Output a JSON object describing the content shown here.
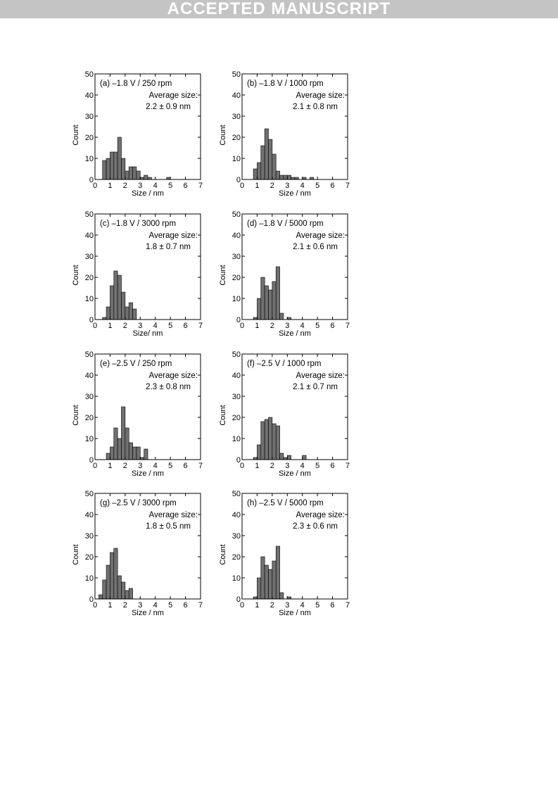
{
  "banner": {
    "text": "ACCEPTED MANUSCRIPT"
  },
  "colors": {
    "bar_fill": "#707070",
    "bar_stroke": "#000000",
    "banner_bg": "#c4c4c4"
  },
  "chart_data": [
    {
      "type": "bar",
      "label": "(a) –1.8 V / 250 rpm",
      "note_line1": "Average size:",
      "note_line2": "2.2 ± 0.9 nm",
      "xlabel": "Size / nm",
      "ylabel": "Count",
      "xlim": [
        0,
        7
      ],
      "ylim": [
        0,
        50
      ],
      "xticks": [
        "0",
        "1",
        "2",
        "3",
        "4",
        "5",
        "6",
        "7"
      ],
      "yticks": [
        "0",
        "10",
        "20",
        "30",
        "40",
        "50"
      ],
      "bin_start": 0.5,
      "bin_width": 0.25,
      "values": [
        9,
        10,
        13,
        13,
        20,
        10,
        4,
        6,
        6,
        4,
        1,
        2,
        1,
        0,
        0,
        0,
        0,
        1
      ]
    },
    {
      "type": "bar",
      "label": "(b) –1.8 V / 1000 rpm",
      "note_line1": "Average size:",
      "note_line2": "2.1 ± 0.8 nm",
      "xlabel": "Size / nm",
      "ylabel": "Count",
      "xlim": [
        0,
        7
      ],
      "ylim": [
        0,
        50
      ],
      "xticks": [
        "0",
        "1",
        "2",
        "3",
        "4",
        "5",
        "6",
        "7"
      ],
      "yticks": [
        "0",
        "10",
        "20",
        "30",
        "40",
        "50"
      ],
      "bin_start": 0.75,
      "bin_width": 0.25,
      "values": [
        5,
        8,
        16,
        24,
        19,
        12,
        4,
        2,
        2,
        2,
        1,
        1,
        0,
        1,
        0,
        1
      ]
    },
    {
      "type": "bar",
      "label": "(c) –1.8 V / 3000 rpm",
      "note_line1": "Average size:",
      "note_line2": "1.8 ± 0.7 nm",
      "xlabel": "Size/ nm",
      "ylabel": "Count",
      "xlim": [
        0,
        7
      ],
      "ylim": [
        0,
        50
      ],
      "xticks": [
        "0",
        "1",
        "2",
        "3",
        "4",
        "5",
        "6",
        "7"
      ],
      "yticks": [
        "0",
        "10",
        "20",
        "30",
        "40",
        "50"
      ],
      "bin_start": 0.5,
      "bin_width": 0.25,
      "values": [
        1,
        6,
        16,
        23,
        21,
        13,
        6,
        8,
        5
      ]
    },
    {
      "type": "bar",
      "label": "(d) –1.8 V / 5000 rpm",
      "note_line1": "Average size:",
      "note_line2": "2.1 ± 0.6 nm",
      "xlabel": "Size / nm",
      "ylabel": "Count",
      "xlim": [
        0,
        7
      ],
      "ylim": [
        0,
        50
      ],
      "xticks": [
        "0",
        "1",
        "2",
        "3",
        "4",
        "5",
        "6",
        "7"
      ],
      "yticks": [
        "0",
        "10",
        "20",
        "30",
        "40",
        "50"
      ],
      "bin_start": 0.75,
      "bin_width": 0.25,
      "values": [
        1,
        10,
        20,
        16,
        14,
        18,
        25,
        3,
        0,
        1
      ]
    },
    {
      "type": "bar",
      "label": "(e) –2.5 V / 250 rpm",
      "note_line1": "Average size:",
      "note_line2": "2.3 ± 0.8 nm",
      "xlabel": "Size / nm",
      "ylabel": "Count",
      "xlim": [
        0,
        7
      ],
      "ylim": [
        0,
        50
      ],
      "xticks": [
        "0",
        "1",
        "2",
        "3",
        "4",
        "5",
        "6",
        "7"
      ],
      "yticks": [
        "0",
        "10",
        "20",
        "30",
        "40",
        "50"
      ],
      "bin_start": 0.75,
      "bin_width": 0.25,
      "values": [
        3,
        6,
        15,
        10,
        25,
        15,
        8,
        6,
        6,
        1,
        5
      ]
    },
    {
      "type": "bar",
      "label": "(f) –2.5 V / 1000 rpm",
      "note_line1": "Average size:",
      "note_line2": "2.1 ± 0.7 nm",
      "xlabel": "Size / nm",
      "ylabel": "Count",
      "xlim": [
        0,
        7
      ],
      "ylim": [
        0,
        50
      ],
      "xticks": [
        "0",
        "1",
        "2",
        "3",
        "4",
        "5",
        "6",
        "7"
      ],
      "yticks": [
        "0",
        "10",
        "20",
        "30",
        "40",
        "50"
      ],
      "bin_start": 0.75,
      "bin_width": 0.25,
      "values": [
        1,
        7,
        18,
        19,
        20,
        17,
        16,
        3,
        1,
        2,
        0,
        0,
        0,
        2
      ]
    },
    {
      "type": "bar",
      "label": "(g) –2.5 V / 3000 rpm",
      "note_line1": "Average size:",
      "note_line2": "1.8 ± 0.5 nm",
      "xlabel": "Size / nm",
      "ylabel": "Count",
      "xlim": [
        0,
        7
      ],
      "ylim": [
        0,
        50
      ],
      "xticks": [
        "0",
        "1",
        "2",
        "3",
        "4",
        "5",
        "6",
        "7"
      ],
      "yticks": [
        "0",
        "10",
        "20",
        "30",
        "40",
        "50"
      ],
      "bin_start": 0.25,
      "bin_width": 0.25,
      "values": [
        2,
        9,
        16,
        22,
        24,
        11,
        8,
        4,
        5
      ]
    },
    {
      "type": "bar",
      "label": "(h) –2.5 V / 5000 rpm",
      "note_line1": "Average size:",
      "note_line2": "2.3 ± 0.6 nm",
      "xlabel": "Size / nm",
      "ylabel": "Count",
      "xlim": [
        0,
        7
      ],
      "ylim": [
        0,
        50
      ],
      "xticks": [
        "0",
        "1",
        "2",
        "3",
        "4",
        "5",
        "6",
        "7"
      ],
      "yticks": [
        "0",
        "10",
        "20",
        "30",
        "40",
        "50"
      ],
      "bin_start": 0.75,
      "bin_width": 0.25,
      "values": [
        1,
        10,
        20,
        16,
        14,
        18,
        25,
        3,
        0,
        1
      ]
    }
  ]
}
